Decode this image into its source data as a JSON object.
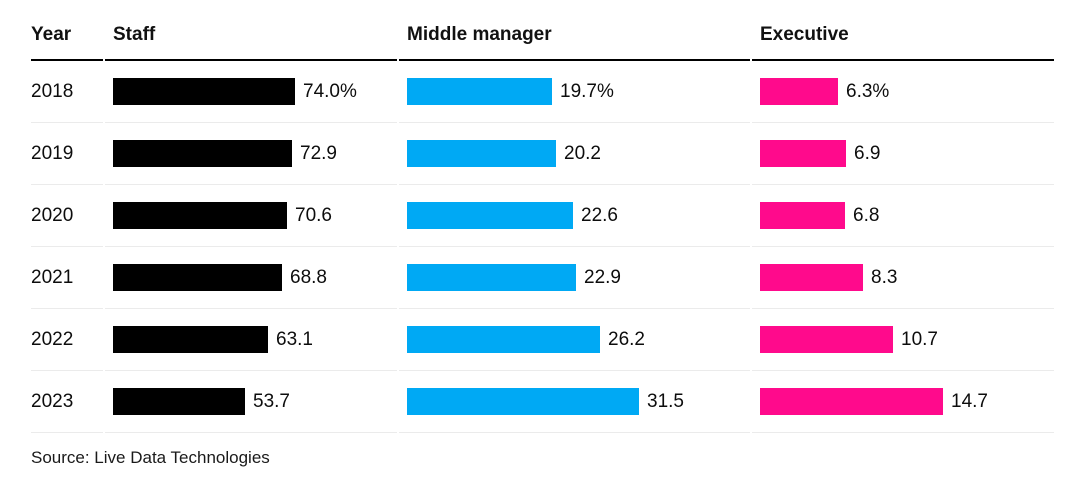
{
  "header": {
    "columns": [
      "Year",
      "Staff",
      "Middle manager",
      "Executive"
    ]
  },
  "source": "Source: Live Data Technologies",
  "colors": {
    "staff": "#000000",
    "middle_manager": "#00A9F4",
    "executive": "#FF0A8C",
    "header_rule": "#000000",
    "row_divider": "#ebebeb"
  },
  "chart_data": {
    "type": "bar",
    "orientation": "horizontal",
    "title": "",
    "xlabel": "",
    "ylabel": "Year",
    "unit": "%",
    "grid": false,
    "legend_position": "column-headers",
    "categories": [
      "2018",
      "2019",
      "2020",
      "2021",
      "2022",
      "2023"
    ],
    "series": [
      {
        "name": "Staff",
        "color": "#000000",
        "values": [
          74.0,
          72.9,
          70.6,
          68.8,
          63.1,
          53.7
        ],
        "labels": [
          "74.0%",
          "72.9",
          "70.6",
          "68.8",
          "63.1",
          "53.7"
        ]
      },
      {
        "name": "Middle manager",
        "color": "#00A9F4",
        "values": [
          19.7,
          20.2,
          22.6,
          22.9,
          26.2,
          31.5
        ],
        "labels": [
          "19.7%",
          "20.2",
          "22.6",
          "22.9",
          "26.2",
          "31.5"
        ]
      },
      {
        "name": "Executive",
        "color": "#FF0A8C",
        "values": [
          6.3,
          6.9,
          6.8,
          8.3,
          10.7,
          14.7
        ],
        "labels": [
          "6.3%",
          "6.9",
          "6.8",
          "8.3",
          "10.7",
          "14.7"
        ]
      }
    ]
  }
}
